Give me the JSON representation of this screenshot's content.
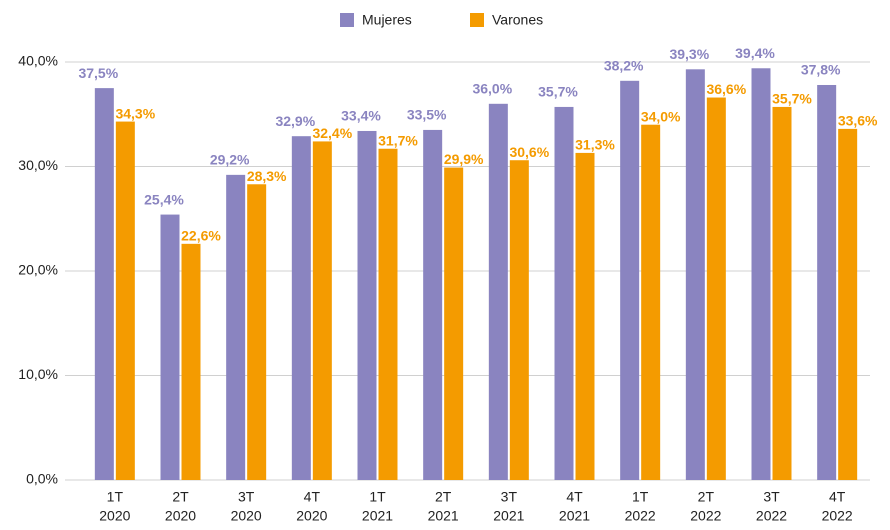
{
  "chart_data": {
    "type": "bar",
    "categories": [
      [
        "1T",
        "2020"
      ],
      [
        "2T",
        "2020"
      ],
      [
        "3T",
        "2020"
      ],
      [
        "4T",
        "2020"
      ],
      [
        "1T",
        "2021"
      ],
      [
        "2T",
        "2021"
      ],
      [
        "3T",
        "2021"
      ],
      [
        "4T",
        "2021"
      ],
      [
        "1T",
        "2022"
      ],
      [
        "2T",
        "2022"
      ],
      [
        "3T",
        "2022"
      ],
      [
        "4T",
        "2022"
      ]
    ],
    "series": [
      {
        "name": "Mujeres",
        "color": "#8a84c0",
        "values": [
          37.5,
          25.4,
          29.2,
          32.9,
          33.4,
          33.5,
          36.0,
          35.7,
          38.2,
          39.3,
          39.4,
          37.8
        ],
        "value_labels": [
          "37,5%",
          "25,4%",
          "29,2%",
          "32,9%",
          "33,4%",
          "33,5%",
          "36,0%",
          "35,7%",
          "38,2%",
          "39,3%",
          "39,4%",
          "37,8%"
        ]
      },
      {
        "name": "Varones",
        "color": "#f49b00",
        "values": [
          34.3,
          22.6,
          28.3,
          32.4,
          31.7,
          29.9,
          30.6,
          31.3,
          34.0,
          36.6,
          35.7,
          33.6
        ],
        "value_labels": [
          "34,3%",
          "22,6%",
          "28,3%",
          "32,4%",
          "31,7%",
          "29,9%",
          "30,6%",
          "31,3%",
          "34,0%",
          "36,6%",
          "35,7%",
          "33,6%"
        ]
      }
    ],
    "ylim": [
      0,
      40
    ],
    "yticks": [
      {
        "value": 0,
        "label": "0,0%"
      },
      {
        "value": 10,
        "label": "10,0%"
      },
      {
        "value": 20,
        "label": "20,0%"
      },
      {
        "value": 30,
        "label": "30,0%"
      },
      {
        "value": 40,
        "label": "40,0%"
      }
    ],
    "grid": true,
    "legend": "top"
  }
}
